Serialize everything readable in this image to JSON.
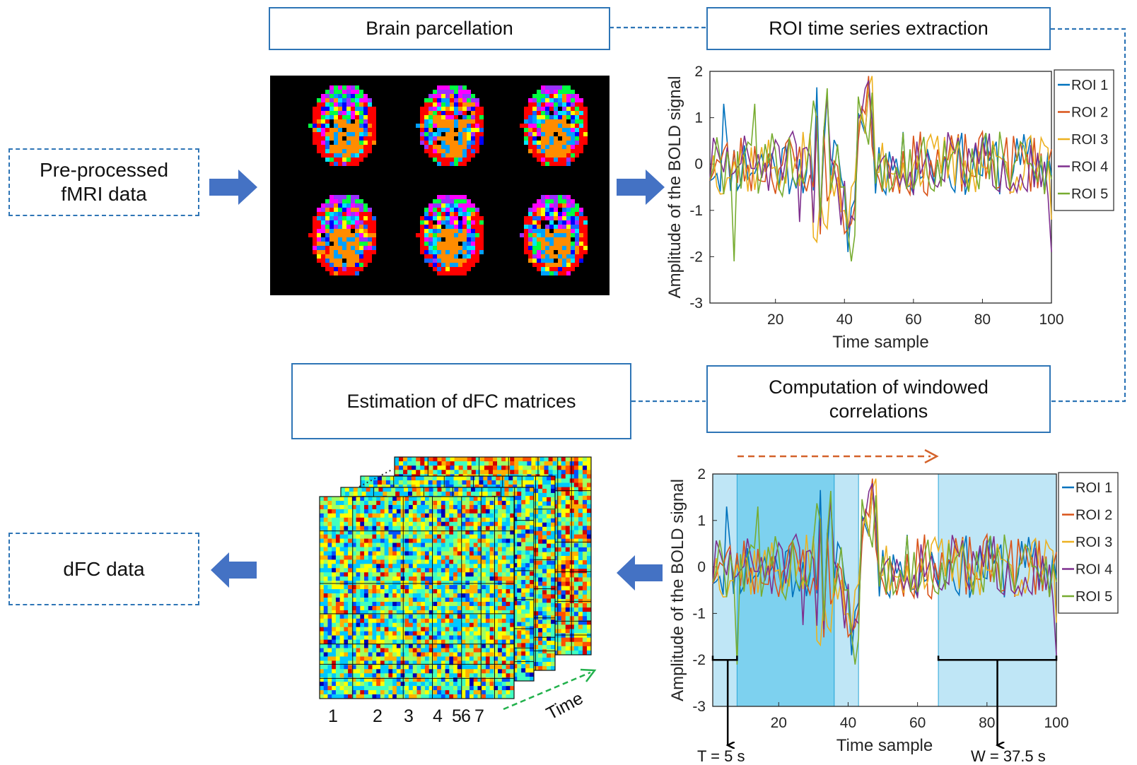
{
  "boxes": {
    "brain_parcellation": "Brain parcellation",
    "roi_extraction": "ROI time series extraction",
    "preprocessed_line1": "Pre-processed",
    "preprocessed_line2": "fMRI data",
    "estimation": "Estimation of dFC matrices",
    "computation_line1": "Computation of windowed",
    "computation_line2": "correlations",
    "dfc_data": "dFC data"
  },
  "colors": {
    "box_border": "#2e75b6",
    "arrow": "#4472c4",
    "roi1": "#0072bd",
    "roi2": "#d95319",
    "roi3": "#edb120",
    "roi4": "#7e2f8e",
    "roi5": "#77ac30",
    "window_light": "#bfe6f6",
    "window_dark": "#7dd1ef",
    "orange_arrow": "#d4622a",
    "green_arrow": "#22b14c"
  },
  "chart_data": [
    {
      "type": "line",
      "title": "",
      "xlabel": "Time sample",
      "ylabel": "Amplitude of the BOLD signal",
      "xlim": [
        1,
        100
      ],
      "ylim": [
        -3,
        2
      ],
      "xticks": [
        20,
        40,
        60,
        80,
        100
      ],
      "yticks": [
        -3,
        -2,
        -1,
        0,
        1,
        2
      ],
      "legend": [
        "ROI 1",
        "ROI 2",
        "ROI 3",
        "ROI 4",
        "ROI 5"
      ],
      "legend_position": "top-right"
    },
    {
      "type": "line",
      "title": "",
      "xlabel": "Time sample",
      "ylabel": "Amplitude of the BOLD signal",
      "xlim": [
        1,
        100
      ],
      "ylim": [
        -3,
        2
      ],
      "xticks": [
        20,
        40,
        60,
        80,
        100
      ],
      "yticks": [
        -3,
        -2,
        -1,
        0,
        1,
        2
      ],
      "legend": [
        "ROI 1",
        "ROI 2",
        "ROI 3",
        "ROI 4",
        "ROI 5"
      ],
      "legend_position": "top-right",
      "windows": [
        {
          "start": 1,
          "end": 36,
          "shade": "light"
        },
        {
          "start": 8,
          "end": 36,
          "shade": "dark"
        },
        {
          "start": 36,
          "end": 43,
          "shade": "light"
        },
        {
          "start": 66,
          "end": 100,
          "shade": "light"
        }
      ],
      "annotations": {
        "step": "T = 5 s",
        "window": "W = 37.5 s"
      }
    }
  ],
  "matrices": {
    "block_labels": [
      "1",
      "2",
      "3",
      "4",
      "5",
      "6",
      "7"
    ],
    "time_label": "Time"
  }
}
